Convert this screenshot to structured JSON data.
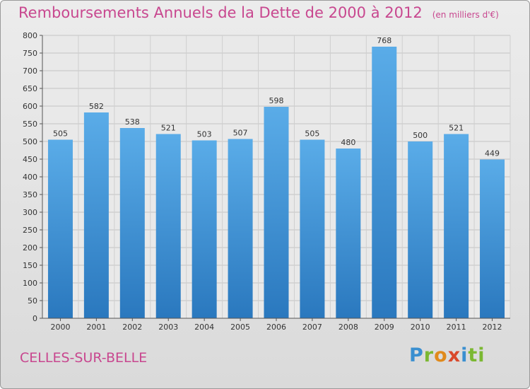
{
  "title": "Remboursements Annuels de la Dette de 2000 à 2012",
  "subtitle": "(en milliers d'€)",
  "city": "CELLES-SUR-BELLE",
  "logo": [
    "P",
    "r",
    "o",
    "x",
    "i",
    "ti"
  ],
  "colors": {
    "bar_top": "#5aace8",
    "bar_bottom": "#2a78be",
    "title": "#c8478f"
  },
  "chart_data": {
    "type": "bar",
    "categories": [
      "2000",
      "2001",
      "2002",
      "2003",
      "2004",
      "2005",
      "2006",
      "2007",
      "2008",
      "2009",
      "2010",
      "2011",
      "2012"
    ],
    "values": [
      505,
      582,
      538,
      521,
      503,
      507,
      598,
      505,
      480,
      768,
      500,
      521,
      449
    ],
    "ylim": [
      0,
      800
    ],
    "yticks": [
      0,
      50,
      100,
      150,
      200,
      250,
      300,
      350,
      400,
      450,
      500,
      550,
      600,
      650,
      700,
      750,
      800
    ],
    "grid": true,
    "title": "Remboursements Annuels de la Dette de 2000 à 2012",
    "xlabel": "",
    "ylabel": ""
  }
}
